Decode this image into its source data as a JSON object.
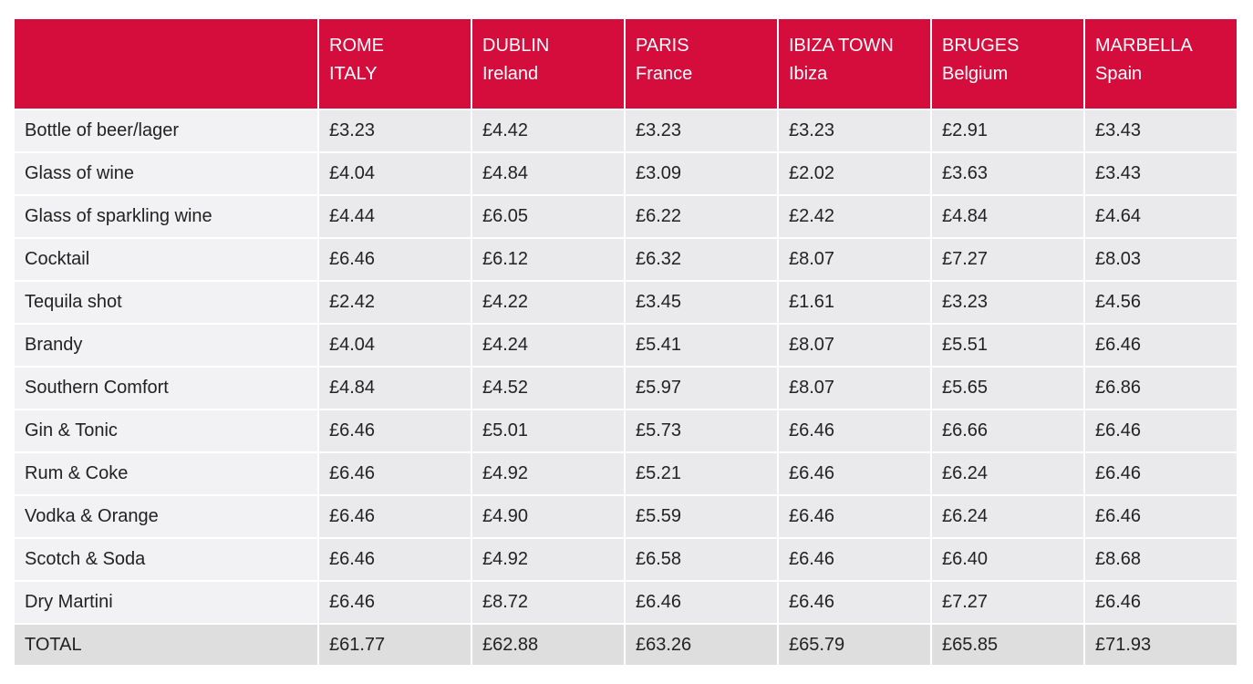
{
  "header": {
    "columns": [
      {
        "city": "ROME",
        "sub": "ITALY"
      },
      {
        "city": "DUBLIN",
        "sub": "Ireland"
      },
      {
        "city": "PARIS",
        "sub": "France"
      },
      {
        "city": "IBIZA TOWN",
        "sub": "Ibiza"
      },
      {
        "city": "BRUGES",
        "sub": "Belgium"
      },
      {
        "city": "MARBELLA",
        "sub": "Spain"
      }
    ]
  },
  "rows": [
    {
      "label": "Bottle of beer/lager",
      "values": [
        "£3.23",
        "£4.42",
        "£3.23",
        "£3.23",
        "£2.91",
        "£3.43"
      ]
    },
    {
      "label": "Glass of wine",
      "values": [
        "£4.04",
        "£4.84",
        "£3.09",
        "£2.02",
        "£3.63",
        "£3.43"
      ]
    },
    {
      "label": "Glass of sparkling wine",
      "values": [
        "£4.44",
        "£6.05",
        "£6.22",
        "£2.42",
        "£4.84",
        "£4.64"
      ]
    },
    {
      "label": "Cocktail",
      "values": [
        "£6.46",
        "£6.12",
        "£6.32",
        "£8.07",
        "£7.27",
        "£8.03"
      ]
    },
    {
      "label": "Tequila shot",
      "values": [
        "£2.42",
        "£4.22",
        "£3.45",
        "£1.61",
        "£3.23",
        "£4.56"
      ]
    },
    {
      "label": "Brandy",
      "values": [
        "£4.04",
        "£4.24",
        "£5.41",
        "£8.07",
        "£5.51",
        "£6.46"
      ]
    },
    {
      "label": "Southern Comfort",
      "values": [
        "£4.84",
        "£4.52",
        "£5.97",
        "£8.07",
        "£5.65",
        "£6.86"
      ]
    },
    {
      "label": "Gin & Tonic",
      "values": [
        "£6.46",
        "£5.01",
        "£5.73",
        "£6.46",
        "£6.66",
        "£6.46"
      ]
    },
    {
      "label": "Rum & Coke",
      "values": [
        "£6.46",
        "£4.92",
        "£5.21",
        "£6.46",
        "£6.24",
        "£6.46"
      ]
    },
    {
      "label": "Vodka & Orange",
      "values": [
        "£6.46",
        "£4.90",
        "£5.59",
        "£6.46",
        "£6.24",
        "£6.46"
      ]
    },
    {
      "label": "Scotch & Soda",
      "values": [
        "£6.46",
        "£4.92",
        "£6.58",
        "£6.46",
        "£6.40",
        "£8.68"
      ]
    },
    {
      "label": "Dry Martini",
      "values": [
        "£6.46",
        "£8.72",
        "£6.46",
        "£6.46",
        "£7.27",
        "£6.46"
      ]
    }
  ],
  "total": {
    "label": "TOTAL",
    "values": [
      "£61.77",
      "£62.88",
      "£63.26",
      "£65.79",
      "£65.85",
      "£71.93"
    ]
  },
  "colors": {
    "header_bg": "#d50d3c",
    "header_text": "#ffffff",
    "cell_bg": "#eaeaec",
    "total_bg": "#dededf"
  }
}
